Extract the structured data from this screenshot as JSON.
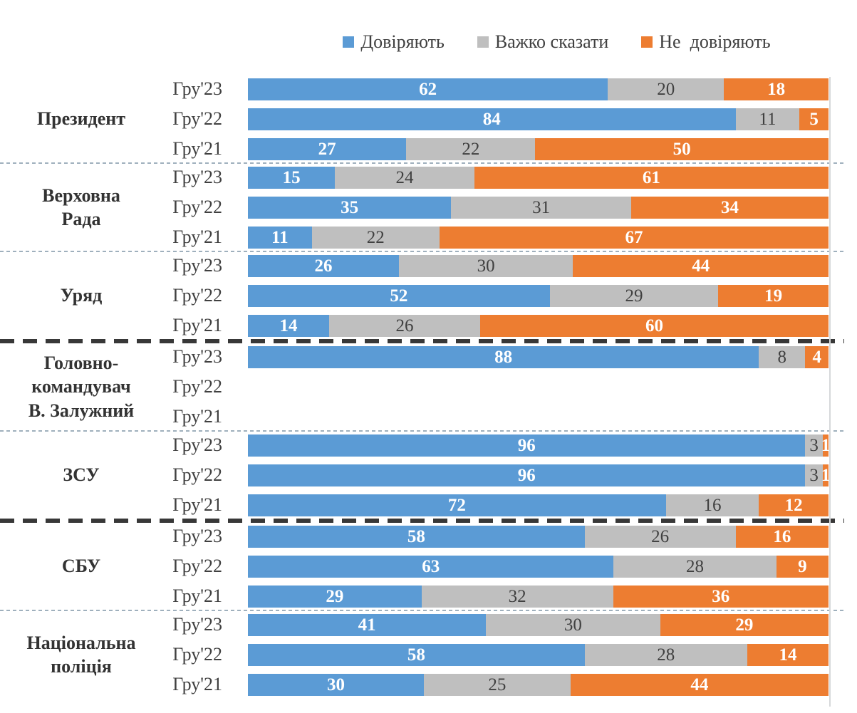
{
  "legend": {
    "items": [
      {
        "label": "Довіряють",
        "color": "#5B9BD5"
      },
      {
        "label": "Важко сказати",
        "color": "#BFBFBF"
      },
      {
        "label": "Не  довіряють",
        "color": "#ED7D31"
      }
    ]
  },
  "colors": {
    "trust": "#5B9BD5",
    "hard_to_say": "#BFBFBF",
    "distrust": "#ED7D31",
    "label_on_color": "#ffffff",
    "label_on_gray": "#404040",
    "separator_dotted": "#9fb0bd",
    "separator_dashed": "#383838",
    "plot_border": "#d6d8da"
  },
  "chart_data": {
    "type": "bar",
    "orientation": "horizontal",
    "stacked": true,
    "unit": "percent",
    "xlim": [
      0,
      100
    ],
    "legend_position": "top",
    "series_names": [
      "Довіряють",
      "Важко сказати",
      "Не довіряють"
    ],
    "series_colors": [
      "#5B9BD5",
      "#BFBFBF",
      "#ED7D31"
    ],
    "groups": [
      {
        "name": "Президент",
        "name_lines": "Президент",
        "separator_after": "dotted",
        "rows": [
          {
            "period": "Гру'23",
            "values": [
              62,
              20,
              18
            ]
          },
          {
            "period": "Гру'22",
            "values": [
              84,
              11,
              5
            ]
          },
          {
            "period": "Гру'21",
            "values": [
              27,
              22,
              50
            ]
          }
        ]
      },
      {
        "name": "Верховна Рада",
        "name_lines": "Верховна\nРада",
        "separator_after": "dotted",
        "rows": [
          {
            "period": "Гру'23",
            "values": [
              15,
              24,
              61
            ]
          },
          {
            "period": "Гру'22",
            "values": [
              35,
              31,
              34
            ]
          },
          {
            "period": "Гру'21",
            "values": [
              11,
              22,
              67
            ]
          }
        ]
      },
      {
        "name": "Уряд",
        "name_lines": "Уряд",
        "separator_after": "dashed",
        "rows": [
          {
            "period": "Гру'23",
            "values": [
              26,
              30,
              44
            ]
          },
          {
            "period": "Гру'22",
            "values": [
              52,
              29,
              19
            ]
          },
          {
            "period": "Гру'21",
            "values": [
              14,
              26,
              60
            ]
          }
        ]
      },
      {
        "name": "Головно-командувач В. Залужний",
        "name_lines": "Головно-\nкомандувач\nВ. Залужний",
        "separator_after": "dotted",
        "rows": [
          {
            "period": "Гру'23",
            "values": [
              88,
              8,
              4
            ]
          },
          {
            "period": "Гру'22",
            "values": null
          },
          {
            "period": "Гру'21",
            "values": null
          }
        ]
      },
      {
        "name": "ЗСУ",
        "name_lines": "ЗСУ",
        "separator_after": "dashed",
        "rows": [
          {
            "period": "Гру'23",
            "values": [
              96,
              3,
              1
            ]
          },
          {
            "period": "Гру'22",
            "values": [
              96,
              3,
              1
            ]
          },
          {
            "period": "Гру'21",
            "values": [
              72,
              16,
              12
            ]
          }
        ]
      },
      {
        "name": "СБУ",
        "name_lines": "СБУ",
        "separator_after": "dotted",
        "rows": [
          {
            "period": "Гру'23",
            "values": [
              58,
              26,
              16
            ]
          },
          {
            "period": "Гру'22",
            "values": [
              63,
              28,
              9
            ]
          },
          {
            "period": "Гру'21",
            "values": [
              29,
              32,
              36
            ]
          }
        ]
      },
      {
        "name": "Національна поліція",
        "name_lines": "Національна\nполіція",
        "separator_after": null,
        "rows": [
          {
            "period": "Гру'23",
            "values": [
              41,
              30,
              29
            ]
          },
          {
            "period": "Гру'22",
            "values": [
              58,
              28,
              14
            ]
          },
          {
            "period": "Гру'21",
            "values": [
              30,
              25,
              44
            ]
          }
        ]
      }
    ]
  }
}
